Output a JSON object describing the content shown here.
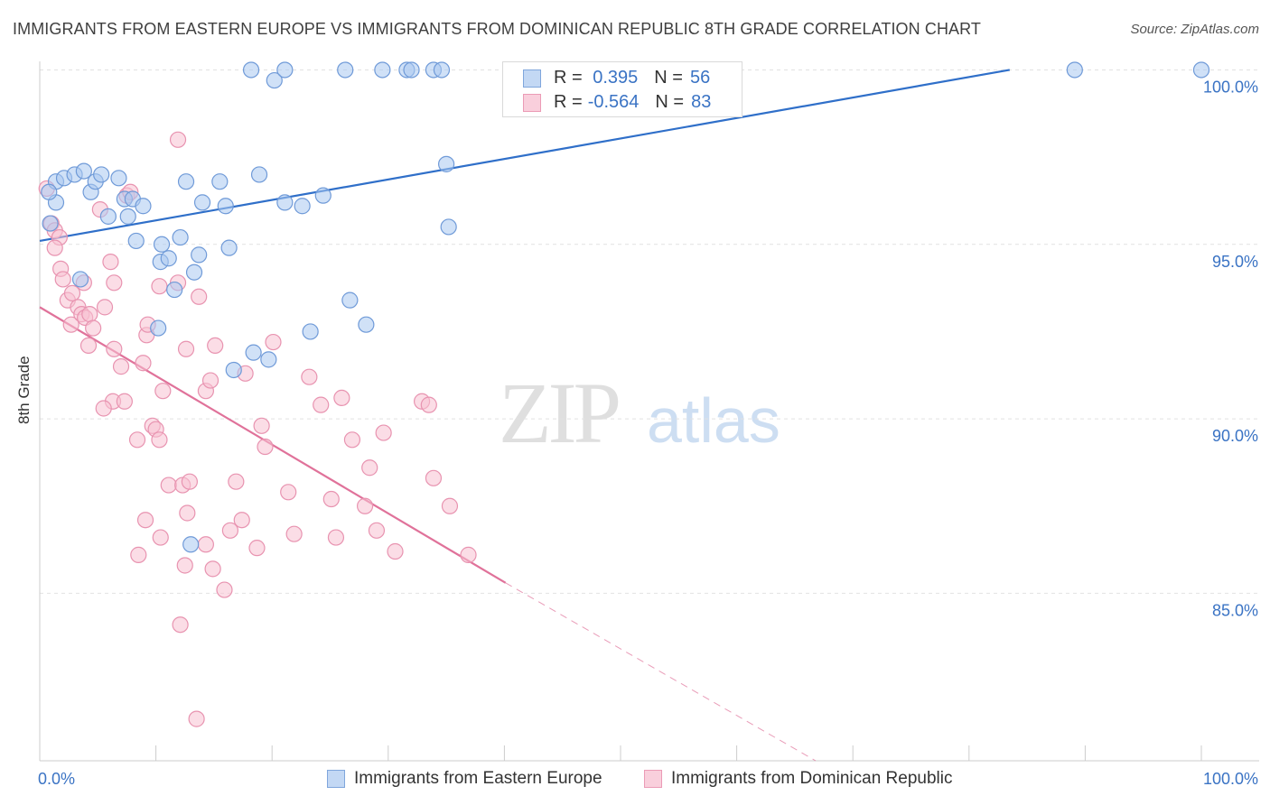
{
  "title": "IMMIGRANTS FROM EASTERN EUROPE VS IMMIGRANTS FROM DOMINICAN REPUBLIC 8TH GRADE CORRELATION CHART",
  "source": "Source: ZipAtlas.com",
  "watermark": {
    "zip": "ZIP",
    "atlas": "atlas"
  },
  "colors": {
    "blue_fill": "#a9c8f0",
    "blue_stroke": "#6f9ad8",
    "blue_line": "#2f6fc9",
    "pink_fill": "#f7c1d2",
    "pink_stroke": "#e893b0",
    "pink_line": "#e0729a",
    "value_text": "#3a73c4",
    "grid": "#e2e2e2"
  },
  "legend": {
    "rows": [
      {
        "r_label": "R =",
        "r_value": " 0.395",
        "n_label": "N =",
        "n_value": "56"
      },
      {
        "r_label": "R =",
        "r_value": "-0.564",
        "n_label": "N =",
        "n_value": "83"
      }
    ]
  },
  "chart_data": {
    "type": "scatter",
    "title": "IMMIGRANTS FROM EASTERN EUROPE VS IMMIGRANTS FROM DOMINICAN REPUBLIC 8TH GRADE CORRELATION CHART",
    "xlabel": "",
    "ylabel": "8th Grade",
    "xlim": [
      0,
      100
    ],
    "ylim": [
      80.2,
      100.4
    ],
    "x_tick_labels": [
      "0.0%",
      "100.0%"
    ],
    "y_ticks": [
      100,
      95,
      90,
      85
    ],
    "y_tick_labels": [
      "100.0%",
      "95.0%",
      "90.0%",
      "85.0%"
    ],
    "grid": true,
    "legend_position": "bottom",
    "series": [
      {
        "name": "Immigrants from Eastern Europe",
        "color": "#a9c8f0",
        "r": 0.395,
        "n": 56,
        "trend": {
          "x": [
            0,
            83.5
          ],
          "y": [
            95.1,
            100.0
          ]
        },
        "points": [
          [
            1.4,
            96.8
          ],
          [
            2.1,
            96.9
          ],
          [
            1.4,
            96.2
          ],
          [
            3.0,
            97.0
          ],
          [
            3.8,
            97.1
          ],
          [
            4.4,
            96.5
          ],
          [
            4.8,
            96.8
          ],
          [
            5.3,
            97.0
          ],
          [
            6.8,
            96.9
          ],
          [
            7.3,
            96.3
          ],
          [
            7.6,
            95.8
          ],
          [
            8.0,
            96.3
          ],
          [
            5.9,
            95.8
          ],
          [
            8.9,
            96.1
          ],
          [
            12.6,
            96.8
          ],
          [
            14.0,
            96.2
          ],
          [
            15.5,
            96.8
          ],
          [
            16.0,
            96.1
          ],
          [
            18.9,
            97.0
          ],
          [
            21.1,
            96.2
          ],
          [
            22.6,
            96.1
          ],
          [
            24.4,
            96.4
          ],
          [
            26.7,
            93.4
          ],
          [
            28.1,
            92.7
          ],
          [
            23.3,
            92.5
          ],
          [
            10.2,
            92.6
          ],
          [
            8.3,
            95.1
          ],
          [
            10.4,
            94.5
          ],
          [
            10.5,
            95.0
          ],
          [
            11.1,
            94.6
          ],
          [
            11.6,
            93.7
          ],
          [
            12.1,
            95.2
          ],
          [
            13.3,
            94.2
          ],
          [
            13.7,
            94.7
          ],
          [
            16.3,
            94.9
          ],
          [
            18.4,
            91.9
          ],
          [
            16.7,
            91.4
          ],
          [
            19.7,
            91.7
          ],
          [
            35.0,
            97.3
          ],
          [
            35.2,
            95.5
          ],
          [
            13.0,
            86.4
          ],
          [
            3.5,
            94.0
          ],
          [
            18.2,
            100.0
          ],
          [
            20.2,
            99.7
          ],
          [
            21.1,
            100.0
          ],
          [
            26.3,
            100.0
          ],
          [
            29.5,
            100.0
          ],
          [
            31.6,
            100.0
          ],
          [
            32.0,
            100.0
          ],
          [
            33.9,
            100.0
          ],
          [
            34.6,
            100.0
          ],
          [
            49.5,
            100.0
          ],
          [
            89.1,
            100.0
          ],
          [
            100.0,
            100.0
          ],
          [
            0.8,
            96.5
          ],
          [
            0.9,
            95.6
          ]
        ]
      },
      {
        "name": "Immigrants from Dominican Republic",
        "color": "#f7c1d2",
        "r": -0.564,
        "n": 83,
        "trend": {
          "x": [
            0,
            40.1
          ],
          "y": [
            93.2,
            85.3
          ],
          "dashed_to": {
            "x": 66.8,
            "y": 80.2
          }
        },
        "points": [
          [
            0.6,
            96.6
          ],
          [
            1.0,
            95.6
          ],
          [
            1.3,
            95.4
          ],
          [
            1.7,
            95.2
          ],
          [
            1.3,
            94.9
          ],
          [
            1.8,
            94.3
          ],
          [
            2.0,
            94.0
          ],
          [
            2.4,
            93.4
          ],
          [
            2.8,
            93.6
          ],
          [
            2.7,
            92.7
          ],
          [
            3.3,
            93.2
          ],
          [
            3.6,
            93.0
          ],
          [
            3.9,
            92.9
          ],
          [
            4.3,
            93.0
          ],
          [
            3.8,
            93.9
          ],
          [
            4.2,
            92.1
          ],
          [
            4.6,
            92.6
          ],
          [
            5.2,
            96.0
          ],
          [
            5.6,
            93.2
          ],
          [
            6.1,
            94.5
          ],
          [
            6.4,
            93.9
          ],
          [
            6.4,
            92.0
          ],
          [
            7.0,
            91.5
          ],
          [
            7.5,
            96.4
          ],
          [
            7.8,
            96.5
          ],
          [
            6.3,
            90.5
          ],
          [
            5.5,
            90.3
          ],
          [
            7.3,
            90.5
          ],
          [
            8.4,
            89.4
          ],
          [
            8.9,
            91.6
          ],
          [
            9.1,
            87.1
          ],
          [
            8.5,
            86.1
          ],
          [
            9.2,
            92.4
          ],
          [
            9.3,
            92.7
          ],
          [
            9.7,
            89.8
          ],
          [
            10.0,
            89.7
          ],
          [
            10.3,
            93.8
          ],
          [
            10.3,
            89.4
          ],
          [
            10.6,
            90.8
          ],
          [
            10.4,
            86.6
          ],
          [
            11.1,
            88.1
          ],
          [
            11.9,
            93.9
          ],
          [
            11.9,
            98.0
          ],
          [
            12.3,
            88.1
          ],
          [
            12.5,
            85.8
          ],
          [
            12.7,
            87.3
          ],
          [
            12.9,
            88.2
          ],
          [
            13.7,
            93.5
          ],
          [
            14.3,
            86.4
          ],
          [
            14.3,
            90.8
          ],
          [
            14.7,
            91.1
          ],
          [
            14.9,
            85.7
          ],
          [
            15.1,
            92.1
          ],
          [
            15.9,
            85.1
          ],
          [
            16.4,
            86.8
          ],
          [
            16.9,
            88.2
          ],
          [
            17.4,
            87.1
          ],
          [
            17.7,
            91.3
          ],
          [
            18.7,
            86.3
          ],
          [
            19.1,
            89.8
          ],
          [
            19.4,
            89.2
          ],
          [
            20.1,
            92.2
          ],
          [
            21.4,
            87.9
          ],
          [
            21.9,
            86.7
          ],
          [
            23.2,
            91.2
          ],
          [
            24.2,
            90.4
          ],
          [
            25.1,
            87.7
          ],
          [
            25.5,
            86.6
          ],
          [
            26.0,
            90.6
          ],
          [
            26.9,
            89.4
          ],
          [
            28.0,
            87.5
          ],
          [
            28.4,
            88.6
          ],
          [
            29.6,
            89.6
          ],
          [
            29.0,
            86.8
          ],
          [
            30.6,
            86.2
          ],
          [
            32.9,
            90.5
          ],
          [
            33.5,
            90.4
          ],
          [
            33.9,
            88.3
          ],
          [
            35.3,
            87.5
          ],
          [
            36.9,
            86.1
          ],
          [
            13.5,
            81.4
          ],
          [
            12.1,
            84.1
          ],
          [
            12.6,
            92.0
          ]
        ]
      }
    ]
  }
}
